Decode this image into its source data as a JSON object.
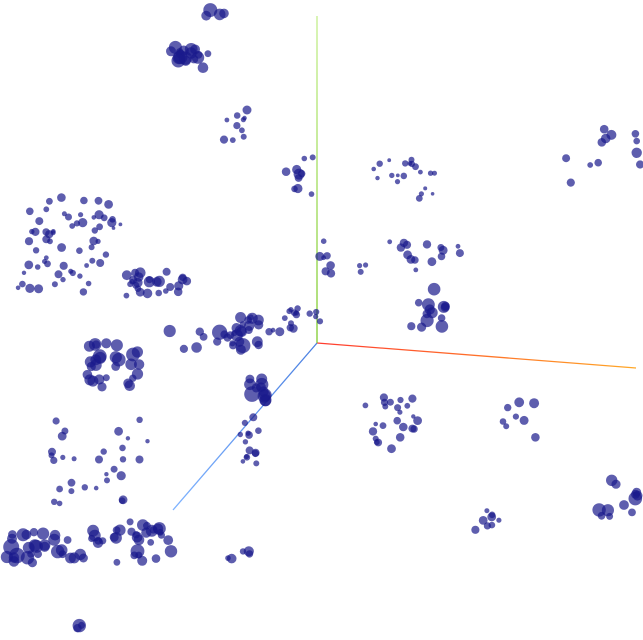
{
  "viewport": {
    "background": "#ffffff"
  },
  "axes": {
    "x_color_start": "#ff3b2f",
    "x_color_end": "#ffa726",
    "y_color_start": "#7ecb2b",
    "y_color_end": "#c5ef8e",
    "z_color_start": "#4a7fe0",
    "z_color_end": "#7fb3ff"
  },
  "points": {
    "color": "#1a1a8c",
    "opacity": 0.7
  }
}
